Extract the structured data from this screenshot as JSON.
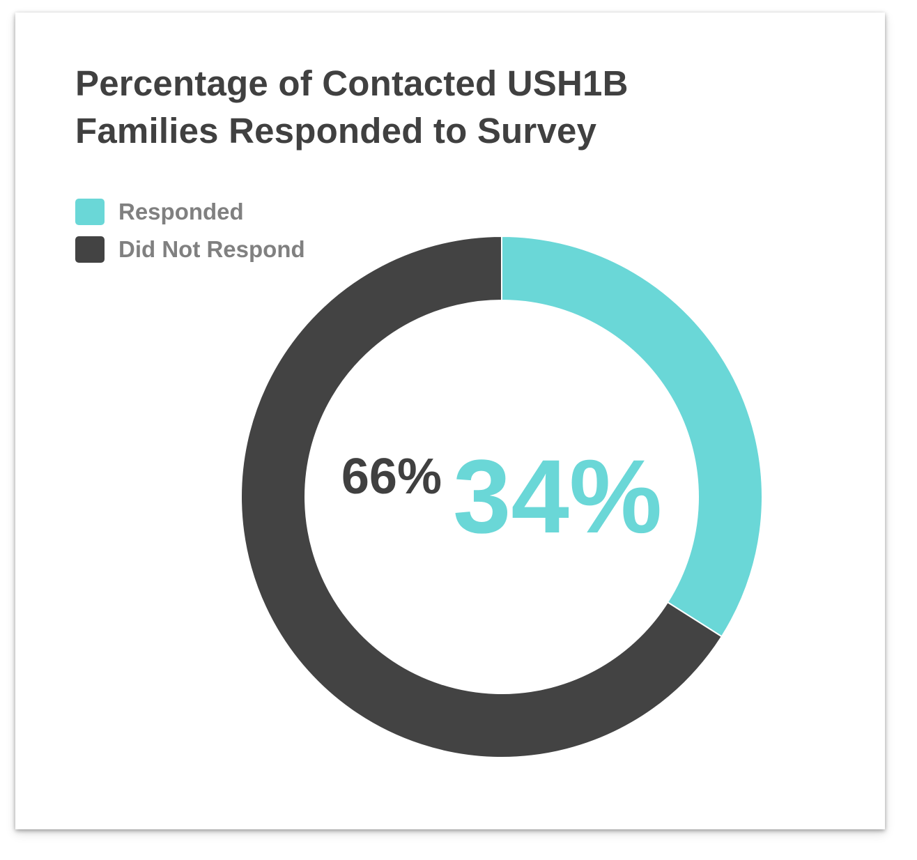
{
  "title_lines": [
    "Percentage of Contacted USH1B",
    "Families Responded to Survey"
  ],
  "legend": [
    {
      "label": "Responded",
      "color": "#6ad7d7"
    },
    {
      "label": "Did Not Respond",
      "color": "#434343"
    }
  ],
  "chart_data": {
    "type": "pie",
    "variant": "donut",
    "title": "Percentage of Contacted USH1B Families Responded to Survey",
    "categories": [
      "Responded",
      "Did Not Respond"
    ],
    "values": [
      34,
      66
    ],
    "unit": "%",
    "colors": [
      "#6ad7d7",
      "#434343"
    ],
    "center_labels": [
      {
        "text": "66%",
        "color": "#404040"
      },
      {
        "text": "34%",
        "color": "#6ad7d7"
      }
    ],
    "legend_position": "top-left",
    "start_angle": "12 o'clock, clockwise"
  }
}
